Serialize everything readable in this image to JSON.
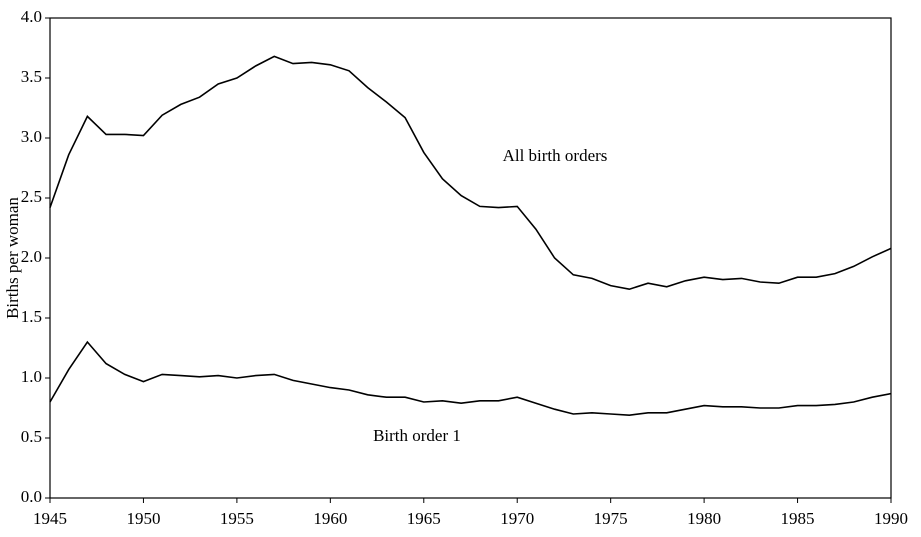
{
  "chart_data": {
    "type": "line",
    "y_label": "Births per woman",
    "x": [
      1945,
      1946,
      1947,
      1948,
      1949,
      1950,
      1951,
      1952,
      1953,
      1954,
      1955,
      1956,
      1957,
      1958,
      1959,
      1960,
      1961,
      1962,
      1963,
      1964,
      1965,
      1966,
      1967,
      1968,
      1969,
      1970,
      1971,
      1972,
      1973,
      1974,
      1975,
      1976,
      1977,
      1978,
      1979,
      1980,
      1981,
      1982,
      1983,
      1984,
      1985,
      1986,
      1987,
      1988,
      1989,
      1990
    ],
    "series": [
      {
        "name": "All birth orders",
        "color": "#000000",
        "values": [
          2.42,
          2.86,
          3.18,
          3.03,
          3.03,
          3.02,
          3.19,
          3.28,
          3.34,
          3.45,
          3.5,
          3.6,
          3.68,
          3.62,
          3.63,
          3.61,
          3.56,
          3.42,
          3.3,
          3.17,
          2.88,
          2.66,
          2.52,
          2.43,
          2.42,
          2.43,
          2.24,
          2.0,
          1.86,
          1.83,
          1.77,
          1.74,
          1.79,
          1.76,
          1.81,
          1.84,
          1.82,
          1.83,
          1.8,
          1.79,
          1.84,
          1.84,
          1.87,
          1.93,
          2.01,
          2.08
        ]
      },
      {
        "name": "Birth order 1",
        "color": "#000000",
        "values": [
          0.8,
          1.07,
          1.3,
          1.12,
          1.03,
          0.97,
          1.03,
          1.02,
          1.01,
          1.02,
          1.0,
          1.02,
          1.03,
          0.98,
          0.95,
          0.92,
          0.9,
          0.86,
          0.84,
          0.84,
          0.8,
          0.81,
          0.79,
          0.81,
          0.81,
          0.84,
          0.79,
          0.74,
          0.7,
          0.71,
          0.7,
          0.69,
          0.71,
          0.71,
          0.74,
          0.77,
          0.76,
          0.76,
          0.75,
          0.75,
          0.77,
          0.77,
          0.78,
          0.8,
          0.84,
          0.87
        ]
      }
    ],
    "xlim": [
      1945,
      1990
    ],
    "xticks": [
      1945,
      1950,
      1955,
      1960,
      1965,
      1970,
      1975,
      1980,
      1985,
      1990
    ],
    "ylim": [
      0,
      4
    ],
    "yticks": [
      {
        "value": 0,
        "label": "0.0"
      },
      0.5,
      {
        "value": 1,
        "label": "1.0"
      },
      1.5,
      {
        "value": 2,
        "label": "2.0"
      },
      2.5,
      {
        "value": 3,
        "label": "3.0"
      },
      3.5,
      {
        "value": 4,
        "label": "4.0"
      }
    ]
  }
}
